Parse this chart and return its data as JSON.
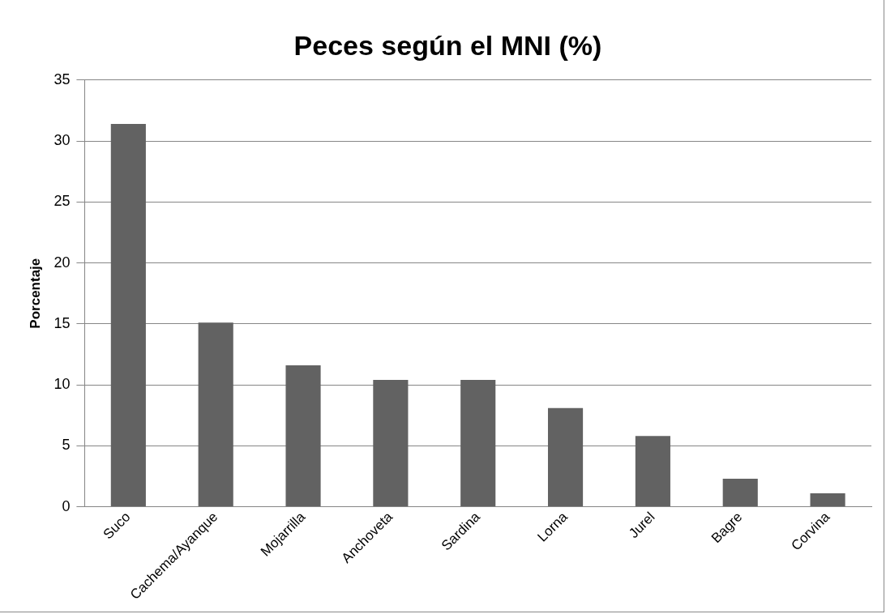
{
  "chart_data": {
    "type": "bar",
    "title": "Peces según el MNI (%)",
    "ylabel": "Porcentaje",
    "categories": [
      "Suco",
      "Cachema/Ayanque",
      "Mojarrilla",
      "Anchoveta",
      "Sardina",
      "Lorna",
      "Jurel",
      "Bagre",
      "Corvina"
    ],
    "values": [
      31.4,
      15.1,
      11.6,
      10.4,
      10.4,
      8.1,
      5.8,
      2.3,
      1.1
    ],
    "color": "#626262",
    "ylim": [
      0,
      35
    ],
    "yticks": [
      0,
      5,
      10,
      15,
      20,
      25,
      30,
      35
    ],
    "grid": "y",
    "legend": false
  }
}
